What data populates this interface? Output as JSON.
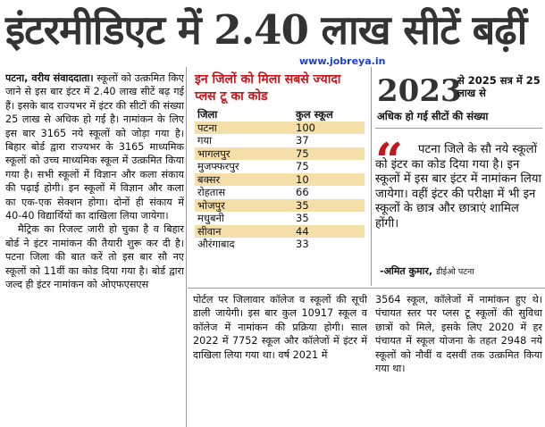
{
  "headline": "इंटरमीडिएट में 2.40 लाख सीटें बढ़ीं",
  "site": "www.jobreya.in",
  "col1": {
    "reporter": "पटना, वरीय संवाददाता।",
    "p1": "स्कूलों को उत्क्रमित किए जाने से इस बार इंटर में 2.40 लाख सीटें बढ़ गई हैं। इसके बाद राज्यभर में इंटर की सीटों की संख्या 25 लाख से अधिक हो गई है। नामांकन के लिए इस बार 3165 नये स्कूलों को जोड़ा गया है। बिहार बोर्ड द्वारा राज्यभर के 3165 माध्यमिक स्कूलों को उच्च माध्यमिक स्कूल में उत्क्रमित किया गया है। सभी स्कूलों में विज्ञान और कला संकाय की पढ़ाई होगी। इन स्कूलों में विज्ञान और कला का एक-एक सेक्शन होगा। दोनों ही संकाय में 40-40 विद्यार्थियों का दाखिला लिया जायेगा।",
    "p2": "मैट्रिक का रिजल्ट जारी हो चुका है व बिहार बोर्ड ने इंटर नामांकन की तैयारी शुरू कर दी है। पटना जिला की बात करें तो इस बार सौ नए स्कूलों को 11वीं का कोड दिया गया है। बोर्ड द्वारा जल्द ही इंटर नामांकन को ओएफएसएस"
  },
  "table": {
    "title": "इन जिलों को मिला सबसे ज्यादा प्लस टू का कोड",
    "header": {
      "district": "जिला",
      "count": "कुल स्कूल"
    },
    "rows": [
      {
        "district": "पटना",
        "count": "100"
      },
      {
        "district": "गया",
        "count": "37"
      },
      {
        "district": "भागलपुर",
        "count": "75"
      },
      {
        "district": "मुजफ्फरपुर",
        "count": "75"
      },
      {
        "district": "बक्सर",
        "count": "10"
      },
      {
        "district": "रोहतास",
        "count": "66"
      },
      {
        "district": "भोजपुर",
        "count": "35"
      },
      {
        "district": "मधुबनी",
        "count": "35"
      },
      {
        "district": "सीवान",
        "count": "44"
      },
      {
        "district": "औरंगाबाद",
        "count": "33"
      }
    ]
  },
  "yearbox": {
    "year": "2023",
    "text1": "से 2025 सत्र में 25 लाख से",
    "text2": "अधिक हो गई सीटों की संख्या"
  },
  "quote": {
    "mark": "“",
    "text": "पटना जिले के सौ नये स्कूलों को इंटर का कोड दिया गया है। इन स्कूलों में इस बार इंटर में नामांकन लिया जायेगा। वहीं इंटर की परीक्षा में भी इन स्कूलों के छात्र और छात्राएं शामिल होंगी।",
    "author": "-अमित कुमार,",
    "author_title": "डीईओ पटना"
  },
  "col2b": "पोर्टल पर जिलावार कॉलेज व स्कूलों की सूची डाली जायेगी। इस बार कुल 10917 स्कूल व कॉलेज में नामांकन की प्रक्रिया होगी। साल 2022 में 7752 स्कूल और कॉलेजों में इंटर में दाखिला लिया गया था। वर्ष 2021 में",
  "col3b": "3564 स्कूल, कॉलेजों में नामांकन हुए थे। पंचायत स्तर पर प्लस टू स्कूलों की सुविधा छात्रों को मिले, इसके लिए 2020 में हर पंचायत में स्कूल योजना के तहत 2948 नये स्कूलों को नौवीं व दसवीं तक उत्क्रमित किया गया था।"
}
